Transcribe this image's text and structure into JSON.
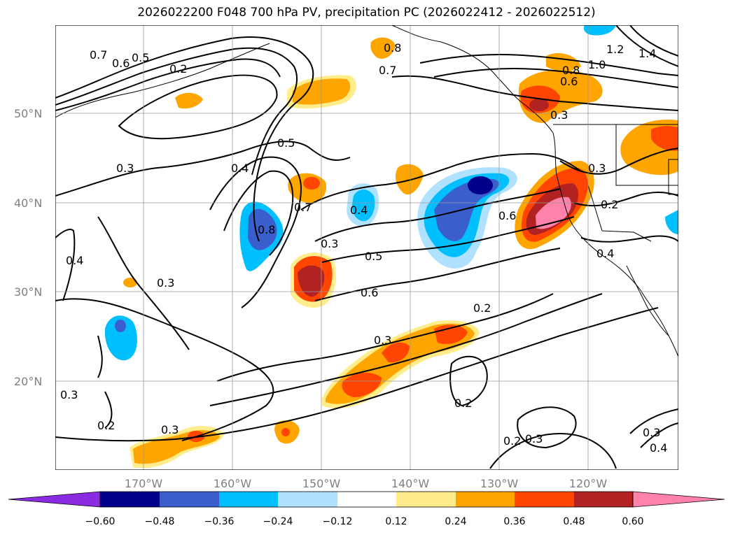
{
  "title": "2026022200 F048 700 hPa PV, precipitation PC (2026022412 - 2026022512)",
  "axes": {
    "lat_labels": [
      "50°N",
      "40°N",
      "30°N",
      "20°N"
    ],
    "lon_labels": [
      "170°W",
      "160°W",
      "150°W",
      "140°W",
      "130°W",
      "120°W"
    ]
  },
  "colorbar": {
    "colors": [
      "#8a2be2",
      "#00008b",
      "#3a5fcd",
      "#00bfff",
      "#b0e2ff",
      "#ffffff",
      "#ffec8b",
      "#ffa500",
      "#ff4500",
      "#b22222",
      "#ff82ab"
    ],
    "tick_labels": [
      "−0.60",
      "−0.48",
      "−0.36",
      "−0.24",
      "−0.12",
      "0.12",
      "0.24",
      "0.36",
      "0.48",
      "0.60"
    ]
  },
  "contour_labels": [
    "0.7",
    "0.6",
    "0.5",
    "0.2",
    "0.8",
    "0.7",
    "0.8",
    "1.0",
    "1.2",
    "1.4",
    "0.6",
    "0.3",
    "0.5",
    "0.4",
    "0.3",
    "0.8",
    "0.7",
    "0.4",
    "0.3",
    "0.6",
    "0.3",
    "0.2",
    "0.4",
    "0.3",
    "0.5",
    "0.6",
    "0.2",
    "0.3",
    "0.2",
    "0.4",
    "0.3",
    "0.2",
    "0.3",
    "0.2",
    "0.3",
    "0.3",
    "0.4"
  ]
}
